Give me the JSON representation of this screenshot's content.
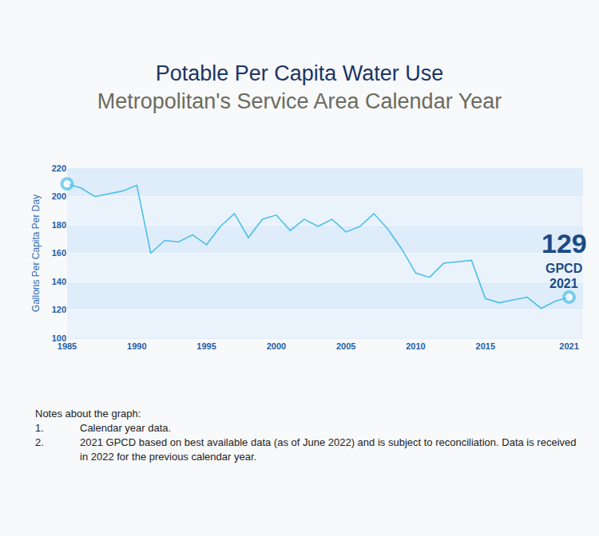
{
  "chart_data": {
    "type": "line",
    "title": "Potable Per Capita Water Use",
    "subtitle": "Metropolitan's Service Area Calendar Year",
    "y_label": "Gallons Per Capita Per Day",
    "x": [
      1985,
      1986,
      1987,
      1988,
      1989,
      1990,
      1991,
      1992,
      1993,
      1994,
      1995,
      1996,
      1997,
      1998,
      1999,
      2000,
      2001,
      2002,
      2003,
      2004,
      2005,
      2006,
      2007,
      2008,
      2009,
      2010,
      2011,
      2012,
      2013,
      2014,
      2015,
      2016,
      2017,
      2018,
      2019,
      2020,
      2021
    ],
    "values": [
      209,
      206,
      200,
      202,
      204,
      208,
      160,
      169,
      168,
      173,
      166,
      179,
      188,
      171,
      184,
      187,
      176,
      184,
      179,
      184,
      175,
      179,
      188,
      177,
      163,
      146,
      143,
      153,
      154,
      155,
      128,
      125,
      127,
      129,
      121,
      126,
      129
    ],
    "color": "#4cc0e8",
    "marker": "circle",
    "xlim": [
      1985,
      2022
    ],
    "xticks": [
      1985,
      1990,
      1995,
      2000,
      2005,
      2010,
      2015,
      2021
    ],
    "ylim": [
      100,
      220
    ],
    "yticks": [
      100,
      120,
      140,
      160,
      180,
      200,
      220
    ],
    "grid": true,
    "annotations": [
      "129",
      "GPCD",
      "2021"
    ]
  },
  "notes": {
    "heading": "Notes about the graph:",
    "items": [
      {
        "label": "1.",
        "text": "Calendar year data."
      },
      {
        "label": "2.",
        "text": "2021 GPCD based on best available data (as of June 2022) and is subject to reconciliation. Data is received in 2022 for the previous calendar year."
      }
    ]
  }
}
